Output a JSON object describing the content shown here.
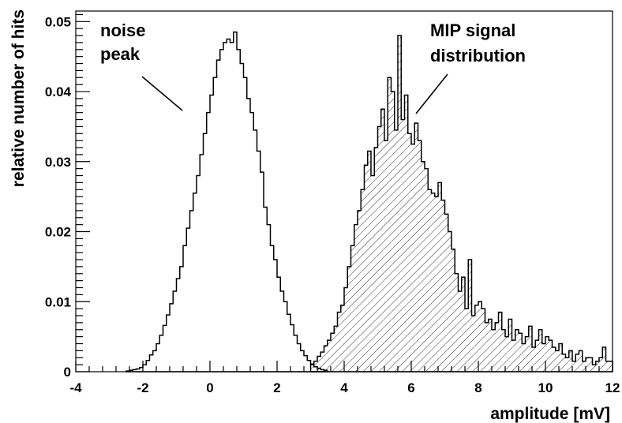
{
  "chart_data": {
    "type": "histogram",
    "xlabel": "amplitude [mV]",
    "ylabel": "relative number of hits",
    "xlim": [
      -4,
      12
    ],
    "ylim": [
      0,
      0.0515
    ],
    "bin_width": 0.1,
    "x_ticks": [
      "-4",
      "-2",
      "0",
      "2",
      "4",
      "6",
      "8",
      "10",
      "12"
    ],
    "y_ticks": [
      "0",
      "0.01",
      "0.02",
      "0.03",
      "0.04",
      "0.05"
    ],
    "grid": false,
    "legend": "none",
    "annotations": [
      {
        "lines": [
          "noise",
          "peak"
        ]
      },
      {
        "lines": [
          "MIP signal",
          "distribution"
        ]
      }
    ],
    "series": [
      {
        "fill": "none",
        "x_start": -2.5,
        "values": [
          0.0001,
          0.0002,
          0.0003,
          0.0004,
          0.0006,
          0.001,
          0.0016,
          0.0024,
          0.003,
          0.004,
          0.0052,
          0.0066,
          0.0081,
          0.0097,
          0.0115,
          0.0133,
          0.015,
          0.018,
          0.0205,
          0.023,
          0.0255,
          0.028,
          0.031,
          0.034,
          0.037,
          0.0395,
          0.042,
          0.0445,
          0.046,
          0.047,
          0.0475,
          0.047,
          0.0485,
          0.046,
          0.044,
          0.042,
          0.039,
          0.037,
          0.0345,
          0.0315,
          0.0285,
          0.0235,
          0.021,
          0.018,
          0.016,
          0.0135,
          0.0115,
          0.01,
          0.0082,
          0.0067,
          0.0052,
          0.004,
          0.003,
          0.0023,
          0.0016,
          0.0011,
          0.0007,
          0.0005,
          0.0003,
          0.0002
        ]
      },
      {
        "fill": "hatched",
        "x_start": 3.0,
        "values": [
          0.001,
          0.0015,
          0.0022,
          0.0028,
          0.0037,
          0.0045,
          0.0055,
          0.0065,
          0.0085,
          0.0095,
          0.012,
          0.015,
          0.018,
          0.021,
          0.023,
          0.026,
          0.0295,
          0.0315,
          0.028,
          0.032,
          0.035,
          0.0375,
          0.033,
          0.042,
          0.04,
          0.0345,
          0.048,
          0.036,
          0.0395,
          0.034,
          0.0325,
          0.0355,
          0.033,
          0.03,
          0.029,
          0.026,
          0.0255,
          0.025,
          0.027,
          0.0245,
          0.0225,
          0.02,
          0.0175,
          0.014,
          0.0115,
          0.0135,
          0.009,
          0.016,
          0.008,
          0.0095,
          0.01,
          0.009,
          0.007,
          0.0075,
          0.006,
          0.007,
          0.0085,
          0.006,
          0.005,
          0.0075,
          0.0045,
          0.006,
          0.0055,
          0.004,
          0.005,
          0.0065,
          0.0035,
          0.0045,
          0.006,
          0.004,
          0.005,
          0.0045,
          0.0035,
          0.003,
          0.004,
          0.0025,
          0.002,
          0.003,
          0.0015,
          0.0025,
          0.003,
          0.0015,
          0.002,
          0.002,
          0.001,
          0.0015,
          0.002,
          0.0035,
          0.0015,
          0.0015
        ]
      }
    ]
  }
}
